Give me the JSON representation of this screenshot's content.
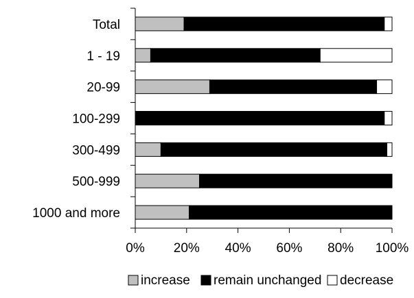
{
  "chart_data": {
    "type": "bar",
    "orientation": "horizontal",
    "stacked": true,
    "percent_stacked": true,
    "title": "",
    "xlabel": "",
    "ylabel": "",
    "xlim": [
      0,
      100
    ],
    "x_ticks": [
      "0%",
      "20%",
      "40%",
      "60%",
      "80%",
      "100%"
    ],
    "grid": false,
    "legend_position": "bottom",
    "categories": [
      "Total",
      "1 - 19",
      "20-99",
      "100-299",
      "300-499",
      "500-999",
      "1000 and more"
    ],
    "series": [
      {
        "name": "increase",
        "color": "#c0c0c0",
        "values": [
          19,
          6,
          29,
          0,
          10,
          25,
          21
        ]
      },
      {
        "name": "remain unchanged",
        "color": "#000000",
        "values": [
          78,
          66,
          65,
          97,
          88,
          75,
          79
        ]
      },
      {
        "name": "decrease",
        "color": "#ffffff",
        "values": [
          3,
          28,
          6,
          3,
          2,
          0,
          0
        ]
      }
    ]
  }
}
